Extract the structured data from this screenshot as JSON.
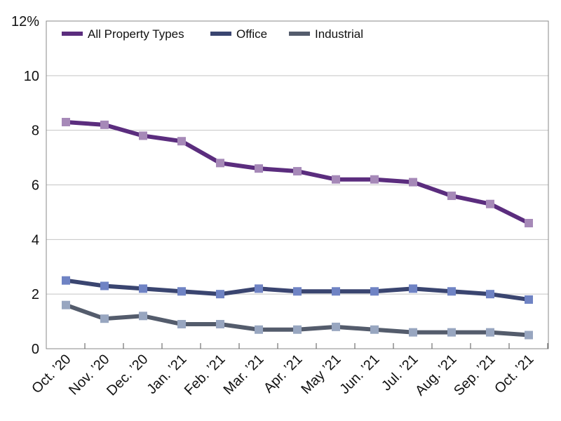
{
  "chart_data": {
    "type": "line",
    "title": "",
    "xlabel": "",
    "ylabel": "",
    "ylim": [
      0,
      12
    ],
    "yticks": [
      {
        "value": 0,
        "label": "0"
      },
      {
        "value": 2,
        "label": "2"
      },
      {
        "value": 4,
        "label": "4"
      },
      {
        "value": 6,
        "label": "6"
      },
      {
        "value": 8,
        "label": "8"
      },
      {
        "value": 10,
        "label": "10"
      },
      {
        "value": 12,
        "label": "12%"
      }
    ],
    "grid": true,
    "legend_position": "top-left",
    "categories": [
      "Oct. ’20",
      "Nov. ’20",
      "Dec. ’20",
      "Jan. ’21",
      "Feb. ’21",
      "Mar. ’21",
      "Apr. ’21",
      "May ’21",
      "Jun. ’21",
      "Jul. ’21",
      "Aug. ’21",
      "Sep. ’21",
      "Oct. ’21"
    ],
    "series": [
      {
        "name": "All Property Types",
        "line_color": "#5b2d7e",
        "marker_color": "#a689b8",
        "values": [
          8.3,
          8.2,
          7.8,
          7.6,
          6.8,
          6.6,
          6.5,
          6.2,
          6.2,
          6.1,
          5.6,
          5.3,
          4.6
        ]
      },
      {
        "name": "Office",
        "line_color": "#3a4570",
        "marker_color": "#6f83c4",
        "values": [
          2.5,
          2.3,
          2.2,
          2.1,
          2.0,
          2.2,
          2.1,
          2.1,
          2.1,
          2.2,
          2.1,
          2.0,
          1.8
        ]
      },
      {
        "name": "Industrial",
        "line_color": "#545c6c",
        "marker_color": "#98a6c0",
        "values": [
          1.6,
          1.1,
          1.2,
          0.9,
          0.9,
          0.7,
          0.7,
          0.8,
          0.7,
          0.6,
          0.6,
          0.6,
          0.5
        ]
      }
    ]
  }
}
